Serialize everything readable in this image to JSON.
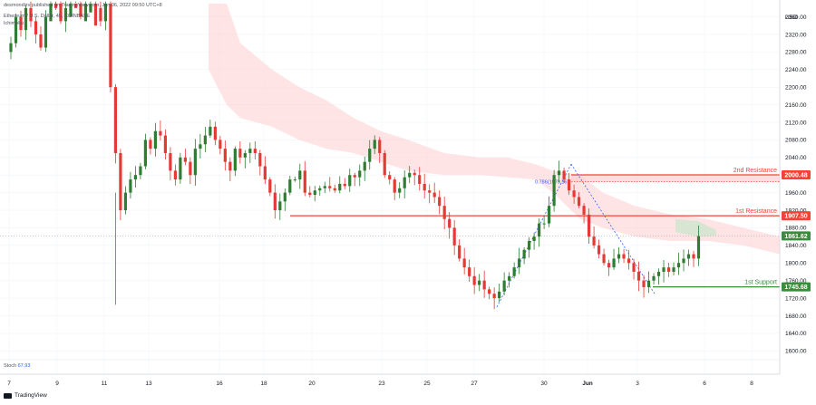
{
  "header": {
    "publish_line": "desmondizv published on TradingView.com, Jun 06, 2022 09:50 UTC+8",
    "symbol_line": "Ethereum / U.S. Dollar, 4h, COINBASE",
    "indicator_line": "Ichimoku"
  },
  "footer": {
    "indicator_label": "Stoch",
    "indicator_value": "67.93",
    "logo_text": "TradingView"
  },
  "colors": {
    "up": "#26a69a",
    "up_candle": "#2e7d32",
    "down": "#e53935",
    "cloud": "#ffcdd2",
    "cloud_green": "#c8e6c9",
    "resistance": "#f44336",
    "support": "#388e3c",
    "current": "#3a8a3f"
  },
  "chart_data": {
    "type": "candlestick",
    "currency": "USD",
    "ylim": [
      1580,
      2390
    ],
    "y_ticks": [
      1600,
      1640,
      1680,
      1720,
      1760,
      1800,
      1840,
      1880,
      1920,
      1960,
      2000,
      2040,
      2080,
      2120,
      2160,
      2200,
      2240,
      2280,
      2320,
      2360
    ],
    "x_ticks": [
      "7",
      "9",
      "11",
      "13",
      "16",
      "18",
      "20",
      "23",
      "25",
      "27",
      "30",
      "Jun",
      "3",
      "6",
      "8"
    ],
    "levels": [
      {
        "name": "2nd Resistance",
        "value": 2000.48,
        "color": "#f44336"
      },
      {
        "name": "1st Resistance",
        "value": 1907.5,
        "color": "#f44336"
      },
      {
        "name": "1st Support",
        "value": 1745.68,
        "color": "#388e3c"
      }
    ],
    "current_price": 1861.62,
    "fib_label": "0.786(1979.36)",
    "closes": [
      2300,
      2360,
      2330,
      2380,
      2350,
      2320,
      2290,
      2360,
      2400,
      2390,
      2350,
      2380,
      2410,
      2400,
      2370,
      2410,
      2430,
      2380,
      2350,
      2390,
      2200,
      2050,
      1920,
      1960,
      1990,
      2000,
      2020,
      2080,
      2060,
      2100,
      2090,
      2050,
      2010,
      1990,
      2040,
      2030,
      2000,
      2060,
      2070,
      2090,
      2110,
      2080,
      2060,
      2030,
      2010,
      2060,
      2040,
      2050,
      2060,
      2050,
      2020,
      1990,
      1960,
      1920,
      1940,
      1960,
      1990,
      1990,
      2010,
      1960,
      1955,
      1965,
      1970,
      1975,
      1970,
      1965,
      1980,
      1975,
      2000,
      1995,
      2010,
      2030,
      2060,
      2080,
      2050,
      2000,
      1990,
      1960,
      1970,
      1995,
      2005,
      2000,
      1980,
      1965,
      1960,
      1950,
      1930,
      1900,
      1880,
      1840,
      1810,
      1790,
      1770,
      1750,
      1760,
      1740,
      1730,
      1720,
      1735,
      1760,
      1770,
      1790,
      1810,
      1830,
      1850,
      1860,
      1890,
      1890,
      1930,
      2000,
      2010,
      1990,
      1965,
      1950,
      1930,
      1910,
      1860,
      1840,
      1820,
      1800,
      1790,
      1810,
      1820,
      1810,
      1800,
      1780,
      1760,
      1745,
      1760,
      1770,
      1780,
      1790,
      1780,
      1790,
      1800,
      1810,
      1820,
      1810,
      1861
    ]
  }
}
